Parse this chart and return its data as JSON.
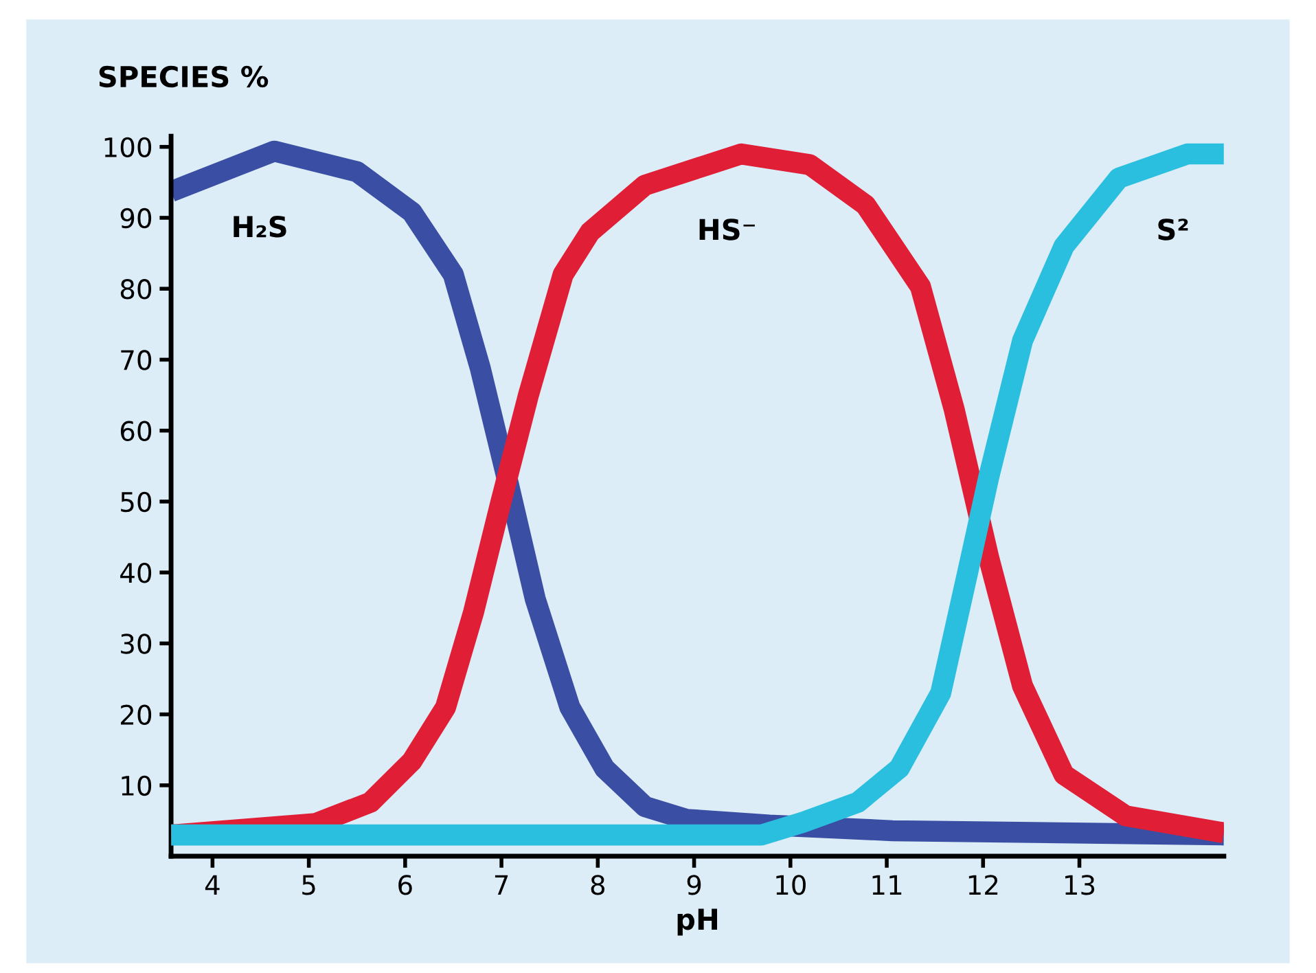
{
  "chart_data": {
    "type": "line",
    "ylabel": "SPECIES %",
    "xlabel": "pH",
    "xlim": [
      3.57,
      14.5
    ],
    "ylim": [
      0,
      101.5
    ],
    "xticks": [
      4,
      5,
      6,
      7,
      8,
      9,
      10,
      11,
      12,
      13
    ],
    "yticks": [
      10,
      20,
      30,
      40,
      50,
      60,
      70,
      80,
      90,
      100
    ],
    "grid": false,
    "legend": false,
    "marker": "none",
    "line_style": "solid",
    "series": [
      {
        "name": "H₂S",
        "color": "#3a4fa3",
        "x": [
          3.57,
          4.64,
          5.5,
          6.07,
          6.5,
          6.78,
          7.07,
          7.35,
          7.71,
          8.07,
          8.49,
          8.92,
          9.78,
          11.06,
          14.5
        ],
        "values": [
          93.7,
          99.4,
          96.5,
          90.8,
          82,
          68.8,
          52.6,
          36.3,
          21,
          12.4,
          7,
          5.2,
          4.4,
          3.6,
          3
        ]
      },
      {
        "name": "HS⁻",
        "color": "#e01f36",
        "x": [
          3.57,
          5.07,
          5.64,
          6.07,
          6.42,
          6.71,
          6.99,
          7.28,
          7.64,
          7.92,
          8.49,
          9.49,
          10.2,
          10.78,
          11.35,
          11.7,
          12.06,
          12.41,
          12.84,
          13.48,
          14.5
        ],
        "values": [
          3,
          4.6,
          7.6,
          13.4,
          21,
          34.4,
          49.7,
          65,
          82,
          88,
          94.6,
          99,
          97.5,
          91.8,
          80.3,
          63,
          42,
          24,
          11.5,
          5.7,
          3.3
        ]
      },
      {
        "name": "S²",
        "color": "#2bbfdf",
        "x": [
          3.57,
          9.7,
          10.13,
          10.7,
          11.13,
          11.56,
          11.84,
          12.06,
          12.41,
          12.84,
          13.41,
          14.12,
          14.5
        ],
        "values": [
          3,
          3,
          4.8,
          7.6,
          12.4,
          23,
          40,
          53.5,
          72.7,
          86,
          95.6,
          99,
          99
        ]
      }
    ]
  }
}
